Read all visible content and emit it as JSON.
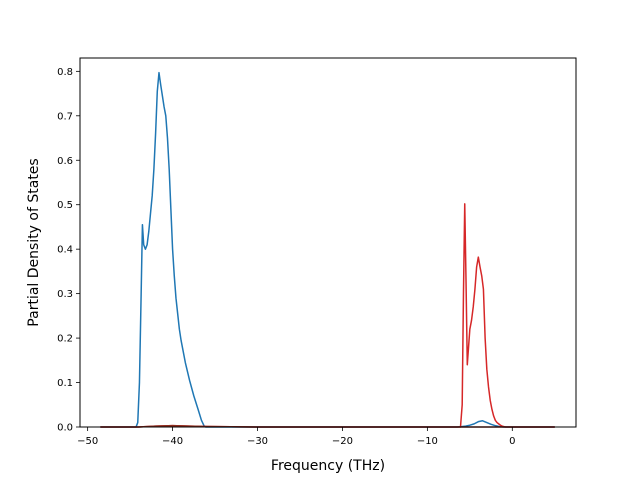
{
  "chart_data": {
    "type": "line",
    "title": "",
    "xlabel": "Frequency (THz)",
    "ylabel": "Partial Density of States",
    "xlim": [
      -50.9,
      7.5
    ],
    "ylim": [
      0,
      0.83
    ],
    "xticks": [
      -50,
      -40,
      -30,
      -20,
      -10,
      0
    ],
    "yticks": [
      0.0,
      0.1,
      0.2,
      0.3,
      0.4,
      0.5,
      0.6,
      0.7,
      0.8
    ],
    "grid": false,
    "legend": "none",
    "series": [
      {
        "color": "#1f77b4",
        "x": [
          -48.5,
          -44.3,
          -44.1,
          -43.9,
          -43.7,
          -43.55,
          -43.4,
          -43.2,
          -43.0,
          -42.8,
          -42.6,
          -42.4,
          -42.2,
          -42.0,
          -41.8,
          -41.6,
          -41.4,
          -41.2,
          -41.0,
          -40.8,
          -40.6,
          -40.4,
          -40.2,
          -40.0,
          -39.8,
          -39.6,
          -39.4,
          -39.2,
          -39.0,
          -38.5,
          -38.0,
          -37.5,
          -37.0,
          -36.6,
          -36.3,
          -36.1,
          -35.9,
          -35.0,
          -20.0,
          -6.5,
          -6.0,
          -5.5,
          -5.0,
          -4.5,
          -4.0,
          -3.5,
          -3.0,
          -2.5,
          -2.0,
          -1.5,
          -1.0,
          -0.5,
          0.0,
          2.0,
          5.0
        ],
        "y": [
          0.0,
          0.0,
          0.01,
          0.1,
          0.3,
          0.455,
          0.41,
          0.4,
          0.41,
          0.44,
          0.48,
          0.52,
          0.58,
          0.66,
          0.755,
          0.797,
          0.77,
          0.745,
          0.72,
          0.7,
          0.65,
          0.58,
          0.49,
          0.4,
          0.34,
          0.29,
          0.255,
          0.22,
          0.195,
          0.145,
          0.105,
          0.07,
          0.04,
          0.015,
          0.003,
          0.0,
          0.0,
          0.0,
          0.0,
          0.0,
          0.001,
          0.002,
          0.004,
          0.007,
          0.012,
          0.014,
          0.01,
          0.006,
          0.003,
          0.001,
          0.0,
          0.0,
          0.0,
          0.0,
          0.0
        ]
      },
      {
        "color": "#d62728",
        "x": [
          -48.5,
          -44.0,
          -42.0,
          -40.0,
          -38.0,
          -36.0,
          -30.0,
          -6.1,
          -5.9,
          -5.75,
          -5.6,
          -5.45,
          -5.3,
          -5.15,
          -5.0,
          -4.8,
          -4.6,
          -4.4,
          -4.2,
          -4.0,
          -3.8,
          -3.6,
          -3.4,
          -3.2,
          -3.0,
          -2.8,
          -2.6,
          -2.4,
          -2.2,
          -2.0,
          -1.8,
          -1.6,
          -1.4,
          -1.2,
          -1.0,
          -0.8,
          -0.5,
          0.0,
          1.0,
          5.0
        ],
        "y": [
          0.0,
          0.0,
          0.002,
          0.003,
          0.002,
          0.001,
          0.0,
          0.0,
          0.05,
          0.3,
          0.502,
          0.33,
          0.14,
          0.18,
          0.22,
          0.24,
          0.27,
          0.31,
          0.36,
          0.382,
          0.36,
          0.34,
          0.31,
          0.2,
          0.13,
          0.09,
          0.06,
          0.04,
          0.025,
          0.015,
          0.01,
          0.007,
          0.004,
          0.002,
          0.001,
          0.0,
          0.0,
          0.0,
          0.0,
          0.0
        ]
      },
      {
        "color": "#8c2d1e",
        "x": [
          -48.5,
          -44.0,
          -42.0,
          -40.0,
          -38.0,
          -36.0,
          -30.0,
          -6.0,
          -5.5,
          0.0,
          5.0
        ],
        "y": [
          0.0,
          0.0,
          0.002,
          0.003,
          0.002,
          0.001,
          0.0,
          0.0,
          0.0,
          0.0,
          0.0
        ]
      }
    ]
  }
}
